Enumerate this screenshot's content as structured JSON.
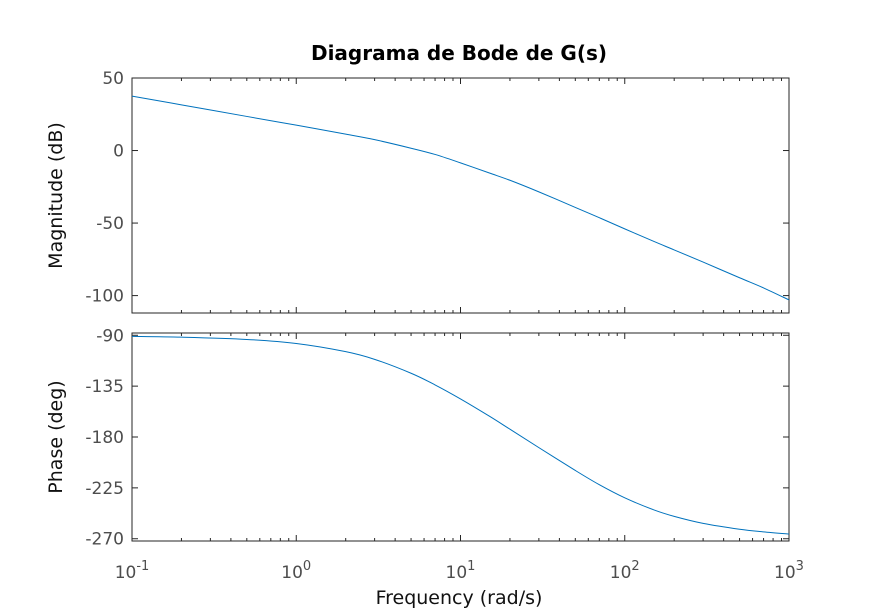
{
  "chart_data": {
    "type": "line",
    "title": "Diagrama de Bode de G(s)",
    "xlabel": "Frequency  (rad/s)",
    "xscale": "log",
    "xlim": [
      0.1,
      1000
    ],
    "x_ticks": [
      {
        "value": 0.1,
        "base": "10",
        "exp": "-1"
      },
      {
        "value": 1,
        "base": "10",
        "exp": "0"
      },
      {
        "value": 10,
        "base": "10",
        "exp": "1"
      },
      {
        "value": 100,
        "base": "10",
        "exp": "2"
      },
      {
        "value": 1000,
        "base": "10",
        "exp": "3"
      }
    ],
    "grid": false,
    "line_color": "#0072bd",
    "panels": [
      {
        "id": "magnitude",
        "ylabel": "Magnitude (dB)",
        "ylim": [
          -112,
          50
        ],
        "yticks": [
          {
            "value": 50,
            "label": "50"
          },
          {
            "value": 0,
            "label": "0"
          },
          {
            "value": -50,
            "label": "-50"
          },
          {
            "value": -100,
            "label": "-100"
          }
        ],
        "series": [
          {
            "x": [
              0.1,
              0.2,
              0.5,
              1,
              2,
              3,
              5,
              7,
              10,
              15,
              20,
              30,
              50,
              70,
              100,
              150,
              200,
              300,
              500,
              700,
              1000
            ],
            "y": [
              37.5,
              31.5,
              23.5,
              17.5,
              11.3,
              7.5,
              1.6,
              -2.7,
              -8.5,
              -15.5,
              -20.5,
              -28.5,
              -39.2,
              -46.3,
              -54,
              -62.6,
              -68.5,
              -76.9,
              -87.7,
              -94.7,
              -103
            ]
          }
        ]
      },
      {
        "id": "phase",
        "ylabel": "Phase (deg)",
        "ylim": [
          -272,
          -88
        ],
        "yticks": [
          {
            "value": -90,
            "label": "-90"
          },
          {
            "value": -135,
            "label": "-135"
          },
          {
            "value": -180,
            "label": "-180"
          },
          {
            "value": -225,
            "label": "-225"
          },
          {
            "value": -270,
            "label": "-270"
          }
        ],
        "series": [
          {
            "x": [
              0.1,
              0.2,
              0.5,
              1,
              2,
              3,
              5,
              7,
              10,
              15,
              20,
              30,
              50,
              70,
              100,
              150,
              200,
              300,
              500,
              700,
              1000
            ],
            "y": [
              -91,
              -91.7,
              -93.7,
              -97.3,
              -104.5,
              -111.3,
              -123.6,
              -133.9,
              -146.3,
              -161.6,
              -173.1,
              -189.4,
              -209.6,
              -222.2,
              -233.8,
              -244.4,
              -250.2,
              -256.4,
              -261.6,
              -263.9,
              -265.8
            ]
          }
        ]
      }
    ]
  }
}
